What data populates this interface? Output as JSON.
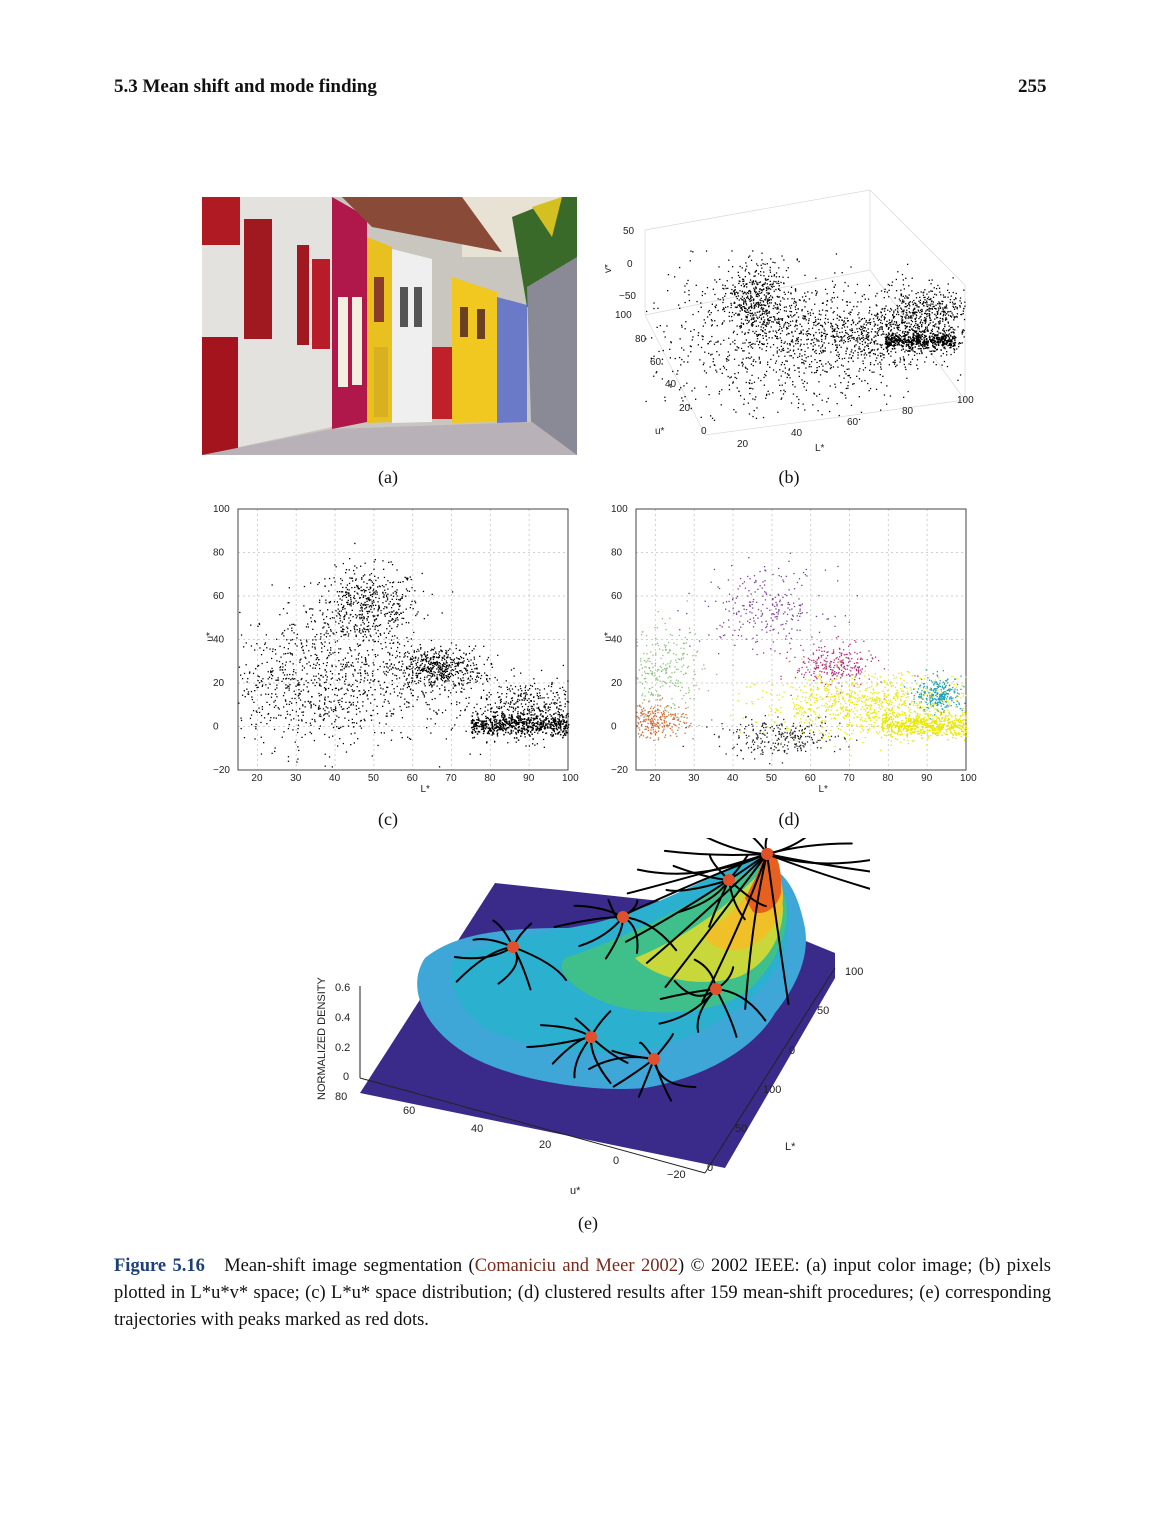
{
  "header": {
    "section": "5.3  Mean shift and mode finding",
    "page_number": "255"
  },
  "panels": {
    "a": "(a)",
    "b": "(b)",
    "c": "(c)",
    "d": "(d)",
    "e": "(e)"
  },
  "panel_b": {
    "v_label": "v*",
    "u_label": "u*",
    "l_label": "L*",
    "v_ticks": [
      "50",
      "0",
      "−50"
    ],
    "u_ticks": [
      "100",
      "80",
      "60",
      "40",
      "20",
      "0"
    ],
    "l_ticks": [
      "20",
      "40",
      "60",
      "80",
      "100"
    ]
  },
  "chart_data": [
    {
      "type": "scatter",
      "panel": "c",
      "xlabel": "L*",
      "ylabel": "u*",
      "xlim": [
        15,
        100
      ],
      "ylim": [
        -20,
        100
      ],
      "x_ticks": [
        "20",
        "30",
        "40",
        "50",
        "60",
        "70",
        "80",
        "90",
        "100"
      ],
      "y_ticks": [
        "100",
        "80",
        "60",
        "40",
        "20",
        "0",
        "−20"
      ],
      "grid": true,
      "clusters": [
        {
          "center": [
            48,
            55
          ],
          "spread": [
            7,
            9
          ]
        },
        {
          "center": [
            66,
            27
          ],
          "spread": [
            6,
            5
          ]
        },
        {
          "center": [
            90,
            8
          ],
          "spread": [
            10,
            7
          ]
        },
        {
          "center": [
            35,
            20
          ],
          "spread": [
            14,
            15
          ]
        }
      ]
    },
    {
      "type": "scatter",
      "panel": "d",
      "xlabel": "L*",
      "ylabel": "u*",
      "xlim": [
        15,
        100
      ],
      "ylim": [
        -20,
        100
      ],
      "x_ticks": [
        "20",
        "30",
        "40",
        "50",
        "60",
        "70",
        "80",
        "90",
        "100"
      ],
      "y_ticks": [
        "100",
        "80",
        "60",
        "40",
        "20",
        "0",
        "−20"
      ],
      "grid": true,
      "clusters": [
        {
          "color": "#7a3d98",
          "center": [
            48,
            55
          ],
          "spread": [
            8,
            9
          ]
        },
        {
          "color": "#b0307a",
          "center": [
            66,
            28
          ],
          "spread": [
            5,
            5
          ]
        },
        {
          "color": "#e8e800",
          "center": [
            75,
            10
          ],
          "spread": [
            14,
            7
          ]
        },
        {
          "color": "#1aa0b8",
          "center": [
            93,
            15
          ],
          "spread": [
            3,
            4
          ]
        },
        {
          "color": "#8fbf80",
          "center": [
            22,
            25
          ],
          "spread": [
            5,
            10
          ]
        },
        {
          "color": "#d06a30",
          "center": [
            20,
            3
          ],
          "spread": [
            4,
            4
          ]
        },
        {
          "color": "#222222",
          "center": [
            52,
            -5
          ],
          "spread": [
            8,
            4
          ]
        }
      ]
    },
    {
      "type": "surface",
      "panel": "e",
      "zlabel": "NORMALIZED DENSITY",
      "xlabel": "u*",
      "ylabel": "L*",
      "z_ticks": [
        "0.6",
        "0.4",
        "0.2",
        "0"
      ],
      "u_ticks": [
        "80",
        "60",
        "40",
        "20",
        "0",
        "−20"
      ],
      "l_ticks": [
        "100",
        "50",
        "0"
      ],
      "l_axis_ticks": [
        "100",
        "50",
        "0"
      ]
    }
  ],
  "caption": {
    "figure": "Figure 5.16",
    "text1": "Mean-shift image segmentation (",
    "citation": "Comaniciu and Meer 2002",
    "text2": ") © 2002 IEEE: (a) input color image; (b) pixels plotted in L*u*v* space; (c) L*u* space distribution; (d) clustered results after 159 mean-shift procedures; (e) corresponding trajectories with peaks marked as red dots."
  },
  "colors": {
    "figure_number": "#1f3f7a",
    "citation": "#7a2a1a",
    "peak_dots": "#e0502a"
  }
}
